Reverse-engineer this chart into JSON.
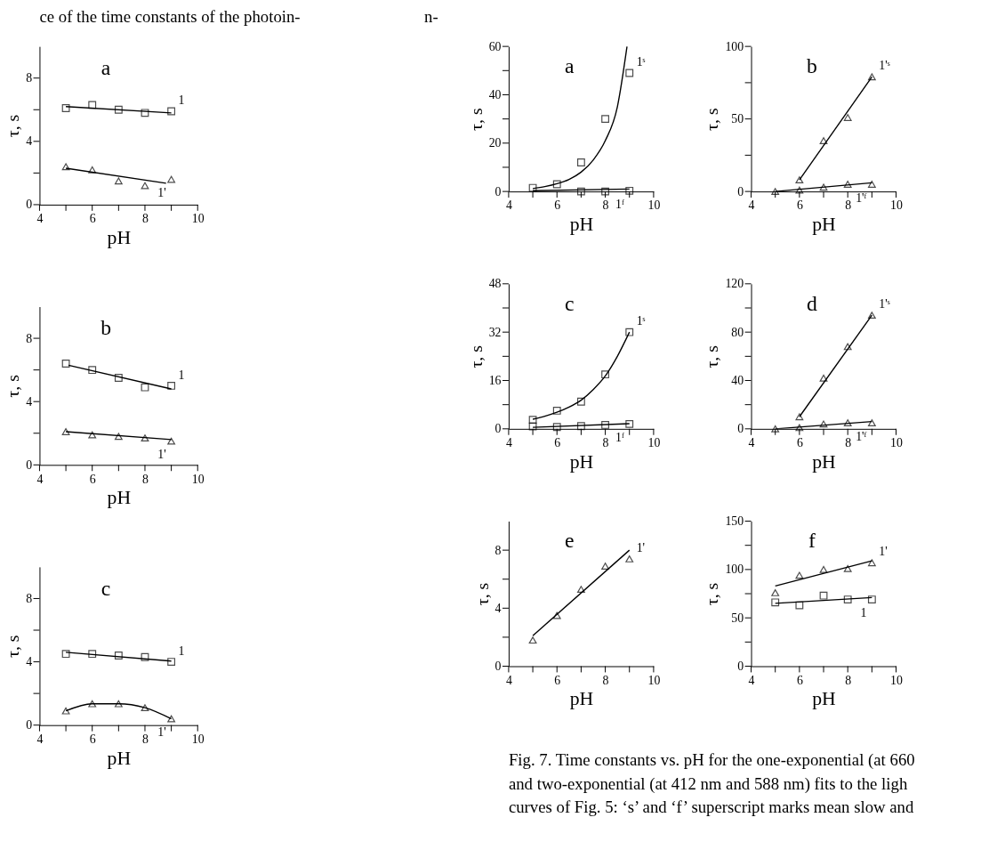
{
  "chart_data": [
    {
      "type": "scatter",
      "title": "a",
      "xlabel": "pH",
      "ylabel": "τ, s",
      "xlim": [
        4,
        10
      ],
      "ylim": [
        0,
        10
      ],
      "xticks": [
        4,
        {
          "value": 5,
          "label": null
        },
        6,
        {
          "value": 7,
          "label": null
        },
        8,
        {
          "value": 9,
          "label": null
        },
        10
      ],
      "yticks": [
        0,
        {
          "value": 2,
          "label": null
        },
        4,
        {
          "value": 6,
          "label": null
        },
        8
      ],
      "annotations": [
        "ce of the time constants of the photoin-",
        "n-"
      ],
      "series": [
        {
          "name": "1",
          "marker": "square",
          "color": "#000000",
          "x": [
            5,
            6,
            7,
            8,
            9
          ],
          "values": [
            6.1,
            6.3,
            6.0,
            5.8,
            5.9
          ]
        },
        {
          "type": "line",
          "color": "#000000",
          "x": [
            5,
            9
          ],
          "values": [
            6.2,
            5.8
          ]
        },
        {
          "name": "1'",
          "marker": "triangle",
          "color": "#000000",
          "x": [
            5,
            6,
            7,
            8,
            9
          ],
          "values": [
            2.4,
            2.2,
            1.5,
            1.2,
            1.6
          ]
        },
        {
          "type": "line",
          "color": "#000000",
          "x": [
            5,
            8.8
          ],
          "values": [
            2.3,
            1.35
          ]
        }
      ]
    },
    {
      "type": "scatter",
      "title": "b",
      "xlabel": "pH",
      "ylabel": "τ, s",
      "xlim": [
        4,
        10
      ],
      "ylim": [
        0,
        10
      ],
      "xticks": [
        4,
        {
          "value": 5,
          "label": null
        },
        6,
        {
          "value": 7,
          "label": null
        },
        8,
        {
          "value": 9,
          "label": null
        },
        10
      ],
      "yticks": [
        0,
        {
          "value": 2,
          "label": null
        },
        4,
        {
          "value": 6,
          "label": null
        },
        8
      ],
      "series": [
        {
          "name": "1",
          "marker": "square",
          "color": "#000000",
          "x": [
            5,
            6,
            7,
            8,
            9
          ],
          "values": [
            6.4,
            6.0,
            5.5,
            4.9,
            5.0
          ]
        },
        {
          "type": "line",
          "color": "#000000",
          "x": [
            5.1,
            9
          ],
          "values": [
            6.3,
            4.8
          ]
        },
        {
          "name": "1'",
          "marker": "triangle",
          "color": "#000000",
          "x": [
            5,
            6,
            7,
            8,
            9
          ],
          "values": [
            2.1,
            1.9,
            1.8,
            1.7,
            1.5
          ]
        },
        {
          "type": "line",
          "color": "#000000",
          "x": [
            5,
            9
          ],
          "values": [
            2.1,
            1.6
          ]
        }
      ]
    },
    {
      "type": "scatter",
      "title": "c",
      "xlabel": "pH",
      "ylabel": "τ, s",
      "xlim": [
        4,
        10
      ],
      "ylim": [
        0,
        10
      ],
      "xticks": [
        4,
        {
          "value": 5,
          "label": null
        },
        6,
        {
          "value": 7,
          "label": null
        },
        8,
        {
          "value": 9,
          "label": null
        },
        10
      ],
      "yticks": [
        0,
        {
          "value": 2,
          "label": null
        },
        4,
        {
          "value": 6,
          "label": null
        },
        8
      ],
      "series": [
        {
          "name": "1",
          "marker": "square",
          "color": "#000000",
          "x": [
            5,
            6,
            7,
            8,
            9
          ],
          "values": [
            4.5,
            4.5,
            4.4,
            4.3,
            4.0
          ]
        },
        {
          "type": "line",
          "color": "#000000",
          "x": [
            5,
            9
          ],
          "values": [
            4.6,
            4.05
          ]
        },
        {
          "name": "1'",
          "marker": "triangle",
          "color": "#000000",
          "x": [
            5,
            6,
            7,
            8,
            9
          ],
          "values": [
            0.9,
            1.35,
            1.35,
            1.1,
            0.4
          ]
        },
        {
          "type": "line",
          "color": "#000000",
          "x": [
            5,
            6,
            7,
            8,
            9
          ],
          "values": [
            0.9,
            1.35,
            1.35,
            1.1,
            0.4
          ]
        }
      ]
    },
    {
      "type": "scatter",
      "title": "a",
      "xlabel": "pH",
      "ylabel": "τ, s",
      "xlim": [
        4,
        10
      ],
      "ylim": [
        0,
        60
      ],
      "xticks": [
        4,
        {
          "value": 5,
          "label": null
        },
        6,
        {
          "value": 7,
          "label": null
        },
        8,
        {
          "value": 9,
          "label": null
        },
        10
      ],
      "yticks": [
        0,
        {
          "value": 10,
          "label": null
        },
        20,
        {
          "value": 30,
          "label": null
        },
        40,
        {
          "value": 50,
          "label": null
        },
        60
      ],
      "series": [
        {
          "name": "1ˢ",
          "marker": "square",
          "color": "#000000",
          "x": [
            5,
            6,
            7,
            8,
            9
          ],
          "values": [
            1.5,
            3,
            12,
            30,
            49
          ]
        },
        {
          "type": "line",
          "color": "#000000",
          "x": [
            5,
            5.5,
            6,
            6.5,
            7,
            7.5,
            8,
            8.5,
            8.9
          ],
          "values": [
            1.2,
            2,
            3.2,
            5,
            8,
            13,
            21,
            35,
            60
          ]
        },
        {
          "name": "1ᶠ",
          "marker": "square",
          "color": "#000000",
          "x": [
            7,
            8,
            9
          ],
          "values": [
            0,
            0,
            0.3
          ]
        },
        {
          "type": "line",
          "color": "#000000",
          "x": [
            5,
            9
          ],
          "values": [
            0.3,
            1
          ]
        }
      ]
    },
    {
      "type": "scatter",
      "title": "b",
      "xlabel": "pH",
      "ylabel": "τ, s",
      "xlim": [
        4,
        10
      ],
      "ylim": [
        0,
        100
      ],
      "xticks": [
        4,
        {
          "value": 5,
          "label": null
        },
        6,
        {
          "value": 7,
          "label": null
        },
        8,
        {
          "value": 9,
          "label": null
        },
        10
      ],
      "yticks": [
        0,
        {
          "value": 25,
          "label": null
        },
        50,
        {
          "value": 75,
          "label": null
        },
        100
      ],
      "series": [
        {
          "name": "1'ˢ",
          "marker": "triangle",
          "color": "#000000",
          "x": [
            6,
            7,
            8,
            9
          ],
          "values": [
            8,
            35,
            51,
            79
          ]
        },
        {
          "type": "line",
          "color": "#000000",
          "x": [
            6,
            9
          ],
          "values": [
            8,
            79
          ]
        },
        {
          "name": "1'ᶠ",
          "marker": "triangle",
          "color": "#000000",
          "x": [
            5,
            6,
            7,
            8,
            9
          ],
          "values": [
            0,
            1,
            3,
            5,
            5
          ]
        },
        {
          "type": "line",
          "color": "#000000",
          "x": [
            5,
            9
          ],
          "values": [
            0,
            6
          ]
        }
      ]
    },
    {
      "type": "scatter",
      "title": "c",
      "xlabel": "pH",
      "ylabel": "τ, s",
      "xlim": [
        4,
        10
      ],
      "ylim": [
        0,
        48
      ],
      "xticks": [
        4,
        {
          "value": 5,
          "label": null
        },
        6,
        {
          "value": 7,
          "label": null
        },
        8,
        {
          "value": 9,
          "label": null
        },
        10
      ],
      "yticks": [
        0,
        {
          "value": 8,
          "label": null
        },
        16,
        {
          "value": 24,
          "label": null
        },
        32,
        {
          "value": 40,
          "label": null
        },
        48
      ],
      "series": [
        {
          "name": "1ˢ",
          "marker": "square",
          "color": "#000000",
          "x": [
            5,
            6,
            7,
            8,
            9
          ],
          "values": [
            3,
            6,
            9,
            18,
            32
          ]
        },
        {
          "type": "line",
          "color": "#000000",
          "x": [
            5,
            5.5,
            6,
            6.5,
            7,
            7.5,
            8,
            8.5,
            9
          ],
          "values": [
            3.2,
            4.2,
            5.5,
            7.2,
            9.5,
            13,
            17.5,
            24,
            32
          ]
        },
        {
          "name": "1ᶠ",
          "marker": "square",
          "color": "#000000",
          "x": [
            5,
            6,
            7,
            8,
            9
          ],
          "values": [
            0.8,
            0.6,
            0.9,
            1.3,
            1.6
          ]
        },
        {
          "type": "line",
          "color": "#000000",
          "x": [
            5,
            9
          ],
          "values": [
            0.5,
            1.7
          ]
        }
      ]
    },
    {
      "type": "scatter",
      "title": "d",
      "xlabel": "pH",
      "ylabel": "τ, s",
      "xlim": [
        4,
        10
      ],
      "ylim": [
        0,
        120
      ],
      "xticks": [
        4,
        {
          "value": 5,
          "label": null
        },
        6,
        {
          "value": 7,
          "label": null
        },
        8,
        {
          "value": 9,
          "label": null
        },
        10
      ],
      "yticks": [
        0,
        {
          "value": 20,
          "label": null
        },
        40,
        {
          "value": 60,
          "label": null
        },
        80,
        {
          "value": 100,
          "label": null
        },
        120
      ],
      "series": [
        {
          "name": "1'ˢ",
          "marker": "triangle",
          "color": "#000000",
          "x": [
            6,
            7,
            8,
            9
          ],
          "values": [
            10,
            42,
            68,
            94
          ]
        },
        {
          "type": "line",
          "color": "#000000",
          "x": [
            6,
            9
          ],
          "values": [
            10,
            94
          ]
        },
        {
          "name": "1'ᶠ",
          "marker": "triangle",
          "color": "#000000",
          "x": [
            5,
            6,
            7,
            8,
            9
          ],
          "values": [
            0,
            1,
            4,
            5,
            5
          ]
        },
        {
          "type": "line",
          "color": "#000000",
          "x": [
            5,
            9
          ],
          "values": [
            0,
            6
          ]
        }
      ]
    },
    {
      "type": "scatter",
      "title": "e",
      "xlabel": "pH",
      "ylabel": "τ, s",
      "xlim": [
        4,
        10
      ],
      "ylim": [
        0,
        10
      ],
      "xticks": [
        4,
        {
          "value": 5,
          "label": null
        },
        6,
        {
          "value": 7,
          "label": null
        },
        8,
        {
          "value": 9,
          "label": null
        },
        10
      ],
      "yticks": [
        0,
        {
          "value": 2,
          "label": null
        },
        4,
        {
          "value": 6,
          "label": null
        },
        8
      ],
      "annotations": [
        "Fig. 7. Time constants vs. pH for the one-exponential (at 660",
        "and two-exponential (at 412 nm and 588 nm) fits to the ligh",
        "curves of Fig. 5: ‘s’ and ‘f’ superscript marks mean slow and"
      ],
      "series": [
        {
          "name": "1'",
          "marker": "triangle",
          "color": "#000000",
          "x": [
            5,
            6,
            7,
            8,
            9
          ],
          "values": [
            1.8,
            3.5,
            5.3,
            6.9,
            7.4
          ]
        },
        {
          "type": "line",
          "color": "#000000",
          "x": [
            5,
            9
          ],
          "values": [
            2.1,
            8.0
          ]
        }
      ]
    },
    {
      "type": "scatter",
      "title": "f",
      "xlabel": "pH",
      "ylabel": "τ, s",
      "xlim": [
        4,
        10
      ],
      "ylim": [
        0,
        150
      ],
      "xticks": [
        4,
        {
          "value": 5,
          "label": null
        },
        6,
        {
          "value": 7,
          "label": null
        },
        8,
        {
          "value": 9,
          "label": null
        },
        10
      ],
      "yticks": [
        0,
        {
          "value": 25,
          "label": null
        },
        50,
        {
          "value": 75,
          "label": null
        },
        100,
        {
          "value": 125,
          "label": null
        },
        150
      ],
      "series": [
        {
          "name": "1'",
          "marker": "triangle",
          "color": "#000000",
          "x": [
            5,
            6,
            7,
            8,
            9
          ],
          "values": [
            76,
            94,
            100,
            101,
            107
          ]
        },
        {
          "type": "line",
          "color": "#000000",
          "x": [
            5,
            9
          ],
          "values": [
            83,
            109
          ]
        },
        {
          "name": "1",
          "marker": "square",
          "color": "#000000",
          "x": [
            5,
            6,
            7,
            8,
            9
          ],
          "values": [
            66,
            63,
            73,
            69,
            69
          ]
        },
        {
          "type": "line",
          "color": "#000000",
          "x": [
            5,
            9
          ],
          "values": [
            65,
            71
          ]
        }
      ]
    }
  ]
}
